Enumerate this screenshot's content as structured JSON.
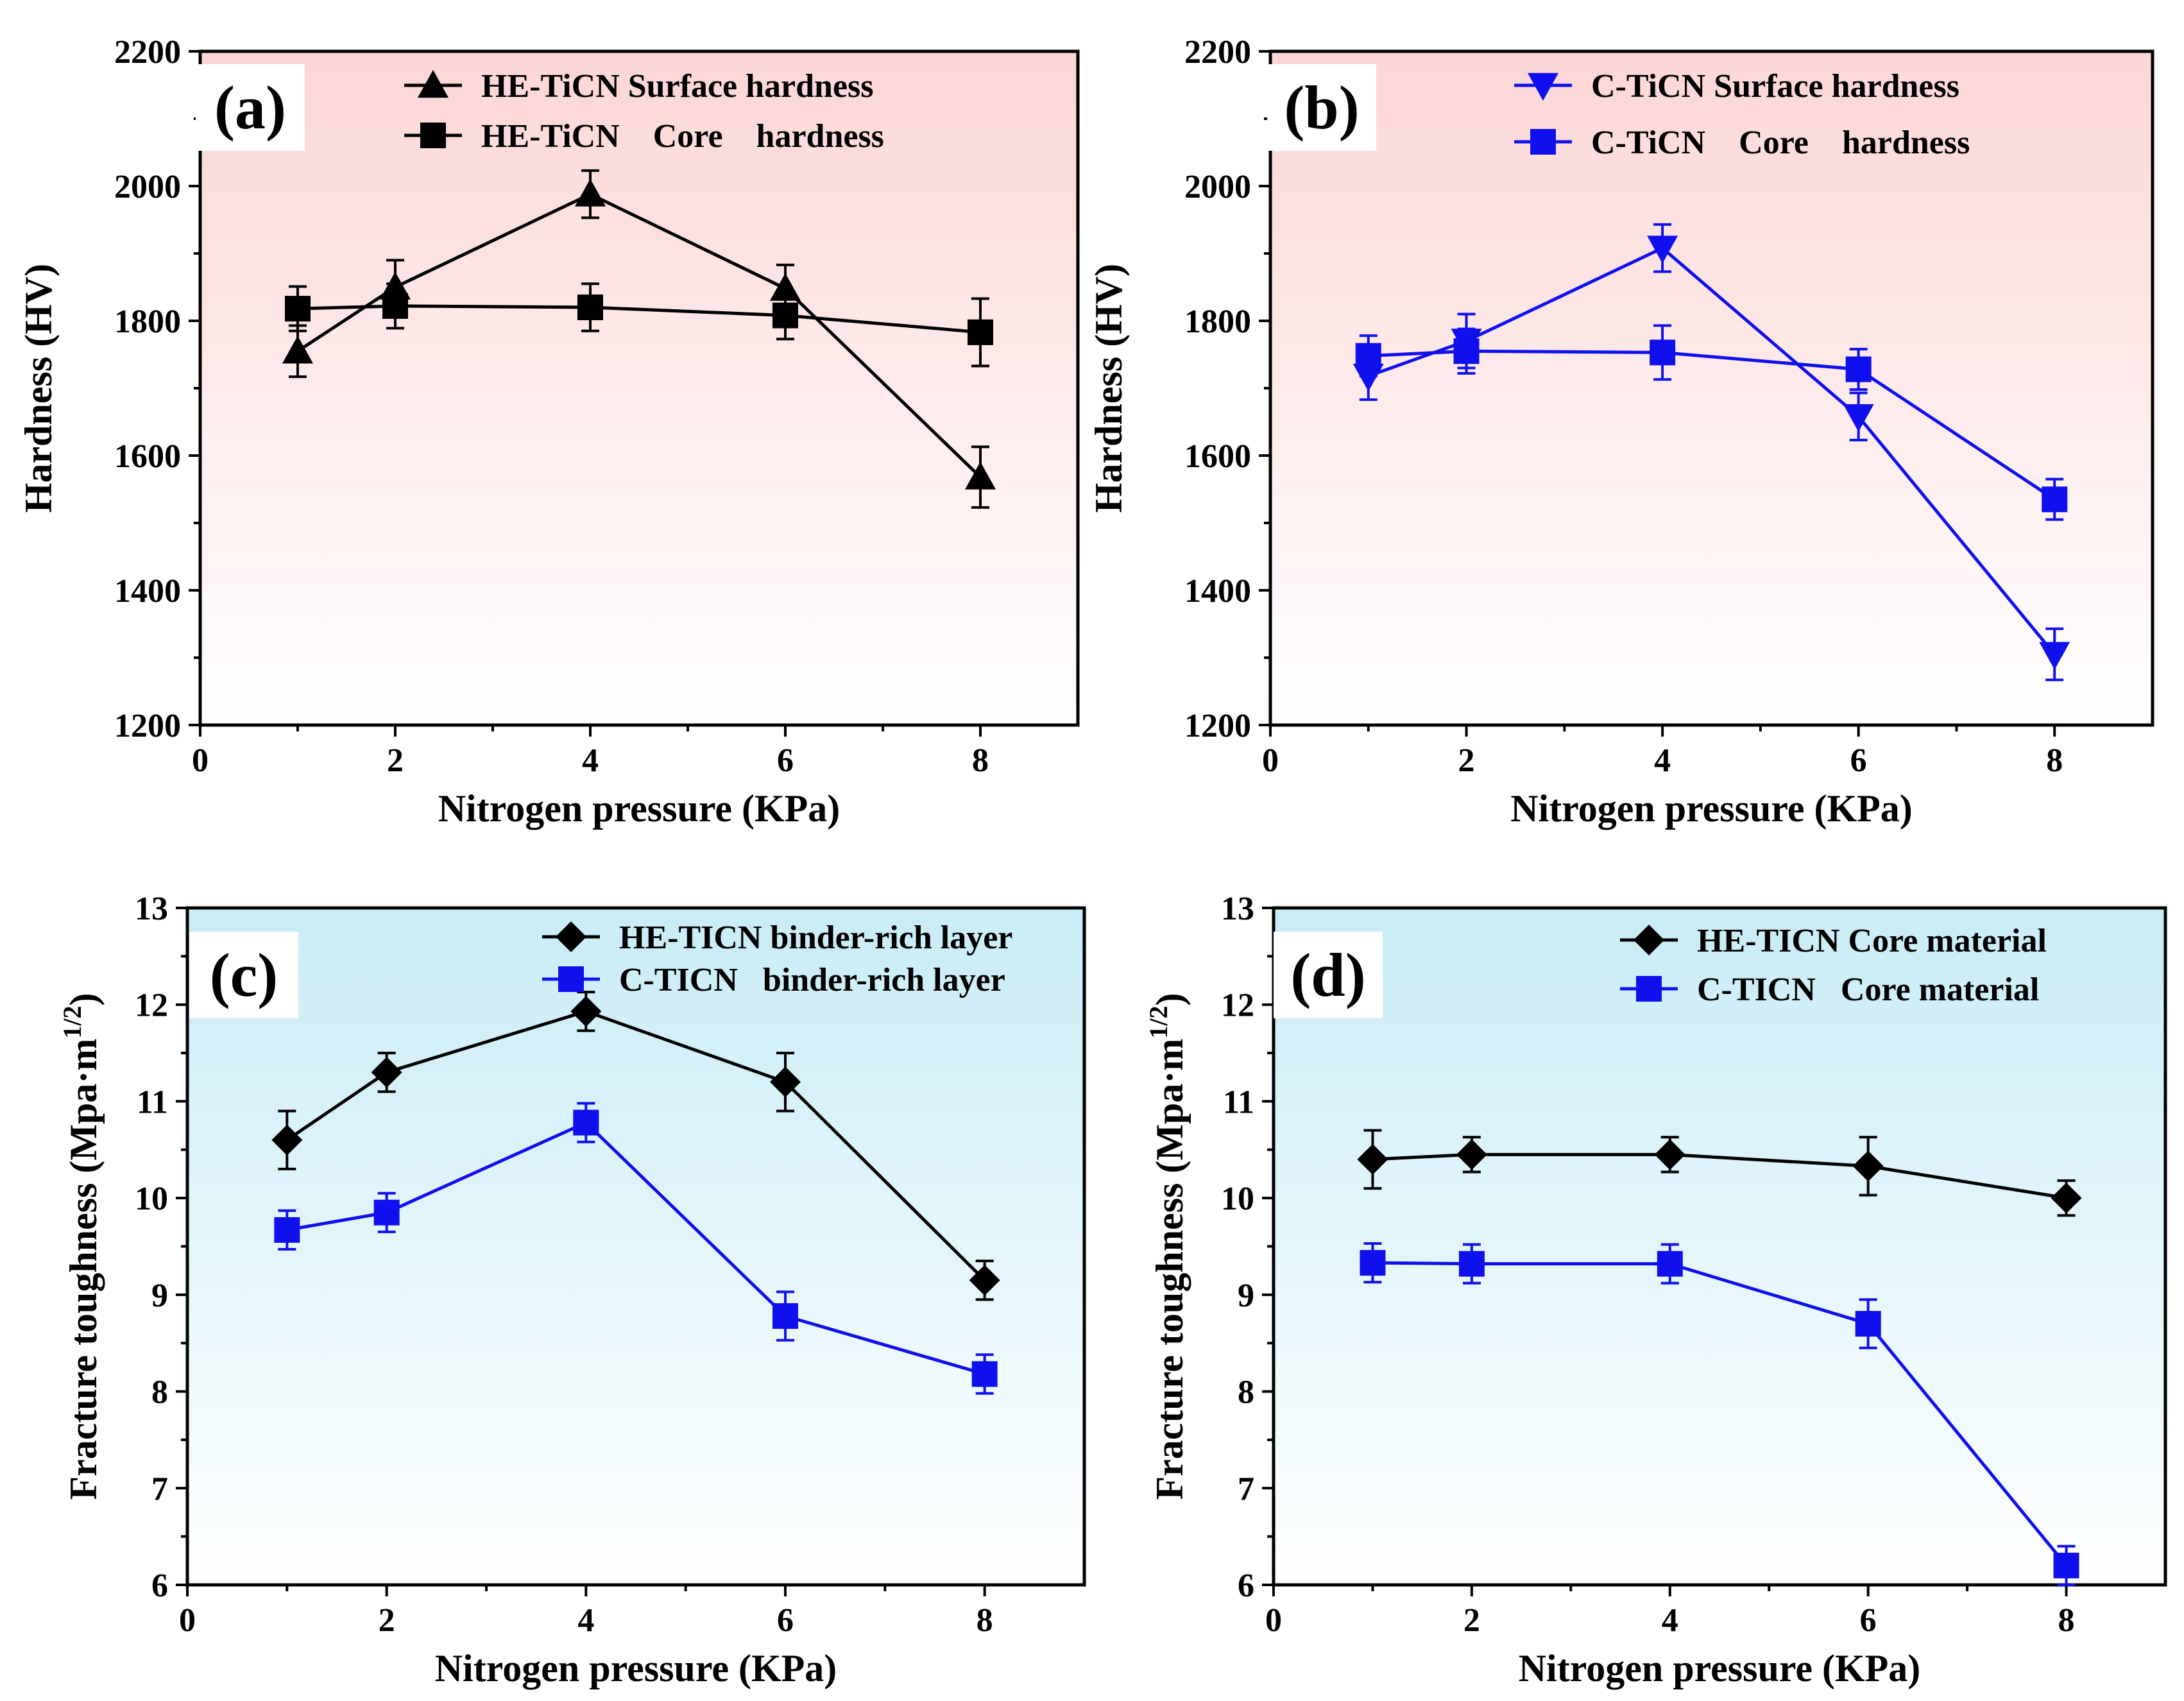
{
  "figure": {
    "colors": {
      "black": "#000000",
      "blue": "#1010ee",
      "pink_top": "#fcd6d6",
      "pink_bottom": "#ffffff",
      "cyan_top": "#c9ecf6",
      "cyan_bottom": "#ffffff"
    }
  },
  "chart_data": [
    {
      "panel": "a",
      "panel_label": "(a)",
      "type": "line",
      "background": "pink",
      "xlabel": "Nitrogen pressure (KPa)",
      "ylabel": "Hardness (HV)",
      "xlim": [
        0,
        9
      ],
      "ylim": [
        1200,
        2200
      ],
      "xticks": [
        0,
        2,
        4,
        6,
        8
      ],
      "yticks": [
        1200,
        1400,
        1600,
        1800,
        2000,
        2200
      ],
      "legend_position": "top-right",
      "series": [
        {
          "name": "HE-TiCN Surface hardness",
          "color": "black",
          "marker": "triangle-up",
          "x": [
            1,
            2,
            4,
            6,
            8
          ],
          "y": [
            1755,
            1850,
            1988,
            1848,
            1568
          ],
          "err": [
            38,
            40,
            35,
            35,
            45
          ]
        },
        {
          "name": "HE-TiCN    Core    hardness",
          "color": "black",
          "marker": "square",
          "x": [
            1,
            2,
            4,
            6,
            8
          ],
          "y": [
            1818,
            1822,
            1820,
            1808,
            1783
          ],
          "err": [
            33,
            33,
            35,
            35,
            50
          ]
        }
      ]
    },
    {
      "panel": "b",
      "panel_label": "(b)",
      "type": "line",
      "background": "pink",
      "xlabel": "Nitrogen pressure (KPa)",
      "ylabel": "Hardness (HV)",
      "xlim": [
        0,
        9
      ],
      "ylim": [
        1200,
        2200
      ],
      "xticks": [
        0,
        2,
        4,
        6,
        8
      ],
      "yticks": [
        1200,
        1400,
        1600,
        1800,
        2000,
        2200
      ],
      "legend_position": "top-right",
      "series": [
        {
          "name": "C-TiCN Surface hardness",
          "color": "blue",
          "marker": "triangle-down",
          "x": [
            1,
            2,
            4,
            6,
            8
          ],
          "y": [
            1718,
            1770,
            1908,
            1658,
            1305
          ],
          "err": [
            35,
            40,
            35,
            35,
            38
          ]
        },
        {
          "name": "C-TiCN    Core    hardness",
          "color": "blue",
          "marker": "square",
          "x": [
            1,
            2,
            4,
            6,
            8
          ],
          "y": [
            1748,
            1755,
            1753,
            1728,
            1535
          ],
          "err": [
            30,
            33,
            40,
            30,
            30
          ]
        }
      ]
    },
    {
      "panel": "c",
      "panel_label": "(c)",
      "type": "line",
      "background": "cyan",
      "xlabel": "Nitrogen pressure (KPa)",
      "ylabel": "Fracture toughness (Mpa·m",
      "ylabel_sup": "1/2",
      "ylabel_end": ")",
      "xlim": [
        0,
        9
      ],
      "ylim": [
        6,
        13
      ],
      "xticks": [
        0,
        2,
        4,
        6,
        8
      ],
      "yticks": [
        6,
        7,
        8,
        9,
        10,
        11,
        12,
        13
      ],
      "legend_position": "top-right",
      "series": [
        {
          "name": "HE-TICN binder-rich layer",
          "color": "black",
          "marker": "diamond",
          "x": [
            1,
            2,
            4,
            6,
            8
          ],
          "y": [
            10.6,
            11.3,
            11.93,
            11.2,
            9.15
          ],
          "err": [
            0.3,
            0.2,
            0.2,
            0.3,
            0.2
          ]
        },
        {
          "name": "C-TICN   binder-rich layer",
          "color": "blue",
          "marker": "square",
          "x": [
            1,
            2,
            4,
            6,
            8
          ],
          "y": [
            9.67,
            9.85,
            10.78,
            8.78,
            8.18
          ],
          "err": [
            0.2,
            0.2,
            0.2,
            0.25,
            0.2
          ]
        }
      ]
    },
    {
      "panel": "d",
      "panel_label": "(d)",
      "type": "line",
      "background": "cyan",
      "xlabel": "Nitrogen pressure (KPa)",
      "ylabel": "Fracture toughness (Mpa·m",
      "ylabel_sup": "1/2",
      "ylabel_end": ")",
      "xlim": [
        0,
        9
      ],
      "ylim": [
        6,
        13
      ],
      "xticks": [
        0,
        2,
        4,
        6,
        8
      ],
      "yticks": [
        6,
        7,
        8,
        9,
        10,
        11,
        12,
        13
      ],
      "legend_position": "top-right",
      "series": [
        {
          "name": "HE-TICN Core material",
          "color": "black",
          "marker": "diamond",
          "x": [
            1,
            2,
            4,
            6,
            8
          ],
          "y": [
            10.4,
            10.45,
            10.45,
            10.33,
            10.0
          ],
          "err": [
            0.3,
            0.18,
            0.18,
            0.3,
            0.18
          ]
        },
        {
          "name": "C-TICN   Core material",
          "color": "blue",
          "marker": "square",
          "x": [
            1,
            2,
            4,
            6,
            8
          ],
          "y": [
            9.33,
            9.32,
            9.32,
            8.7,
            6.2
          ],
          "err": [
            0.2,
            0.2,
            0.2,
            0.25,
            0.2
          ]
        }
      ]
    }
  ]
}
